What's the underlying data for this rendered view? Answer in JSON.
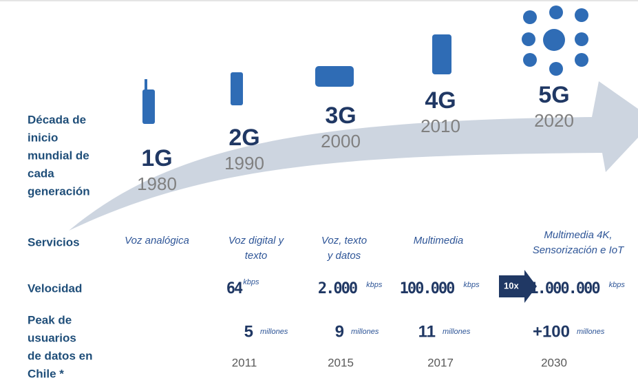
{
  "row_labels": {
    "decade": [
      "Década de",
      "inicio",
      "mundial de",
      "cada",
      "generación"
    ],
    "services": "Servicios",
    "speed": "Velocidad",
    "users": [
      "Peak de",
      "usuarios",
      "de datos en",
      "Chile *"
    ]
  },
  "badge": "10x",
  "generations": [
    {
      "name": "1G",
      "year": "1980",
      "service": [
        "Voz analógica"
      ]
    },
    {
      "name": "2G",
      "year": "1990",
      "service": [
        "Voz  digital y",
        "texto"
      ],
      "speed": "64",
      "speed_unit": "kbps",
      "users": "5",
      "users_unit": "millones",
      "users_year": "2011"
    },
    {
      "name": "3G",
      "year": "2000",
      "service": [
        "Voz, texto",
        "y datos"
      ],
      "speed": "2.000",
      "speed_unit": "kbps",
      "users": "9",
      "users_unit": "millones",
      "users_year": "2015"
    },
    {
      "name": "4G",
      "year": "2010",
      "service": [
        "Multimedia"
      ],
      "speed": "100.000",
      "speed_unit": "kbps",
      "users": "11",
      "users_unit": "millones",
      "users_year": "2017"
    },
    {
      "name": "5G",
      "year": "2020",
      "service": [
        "Multimedia 4K,",
        "Sensorización e IoT"
      ],
      "speed": "1.000.000",
      "speed_unit": "kbps",
      "users": "+100",
      "users_unit": "millones",
      "users_year": "2030"
    }
  ]
}
